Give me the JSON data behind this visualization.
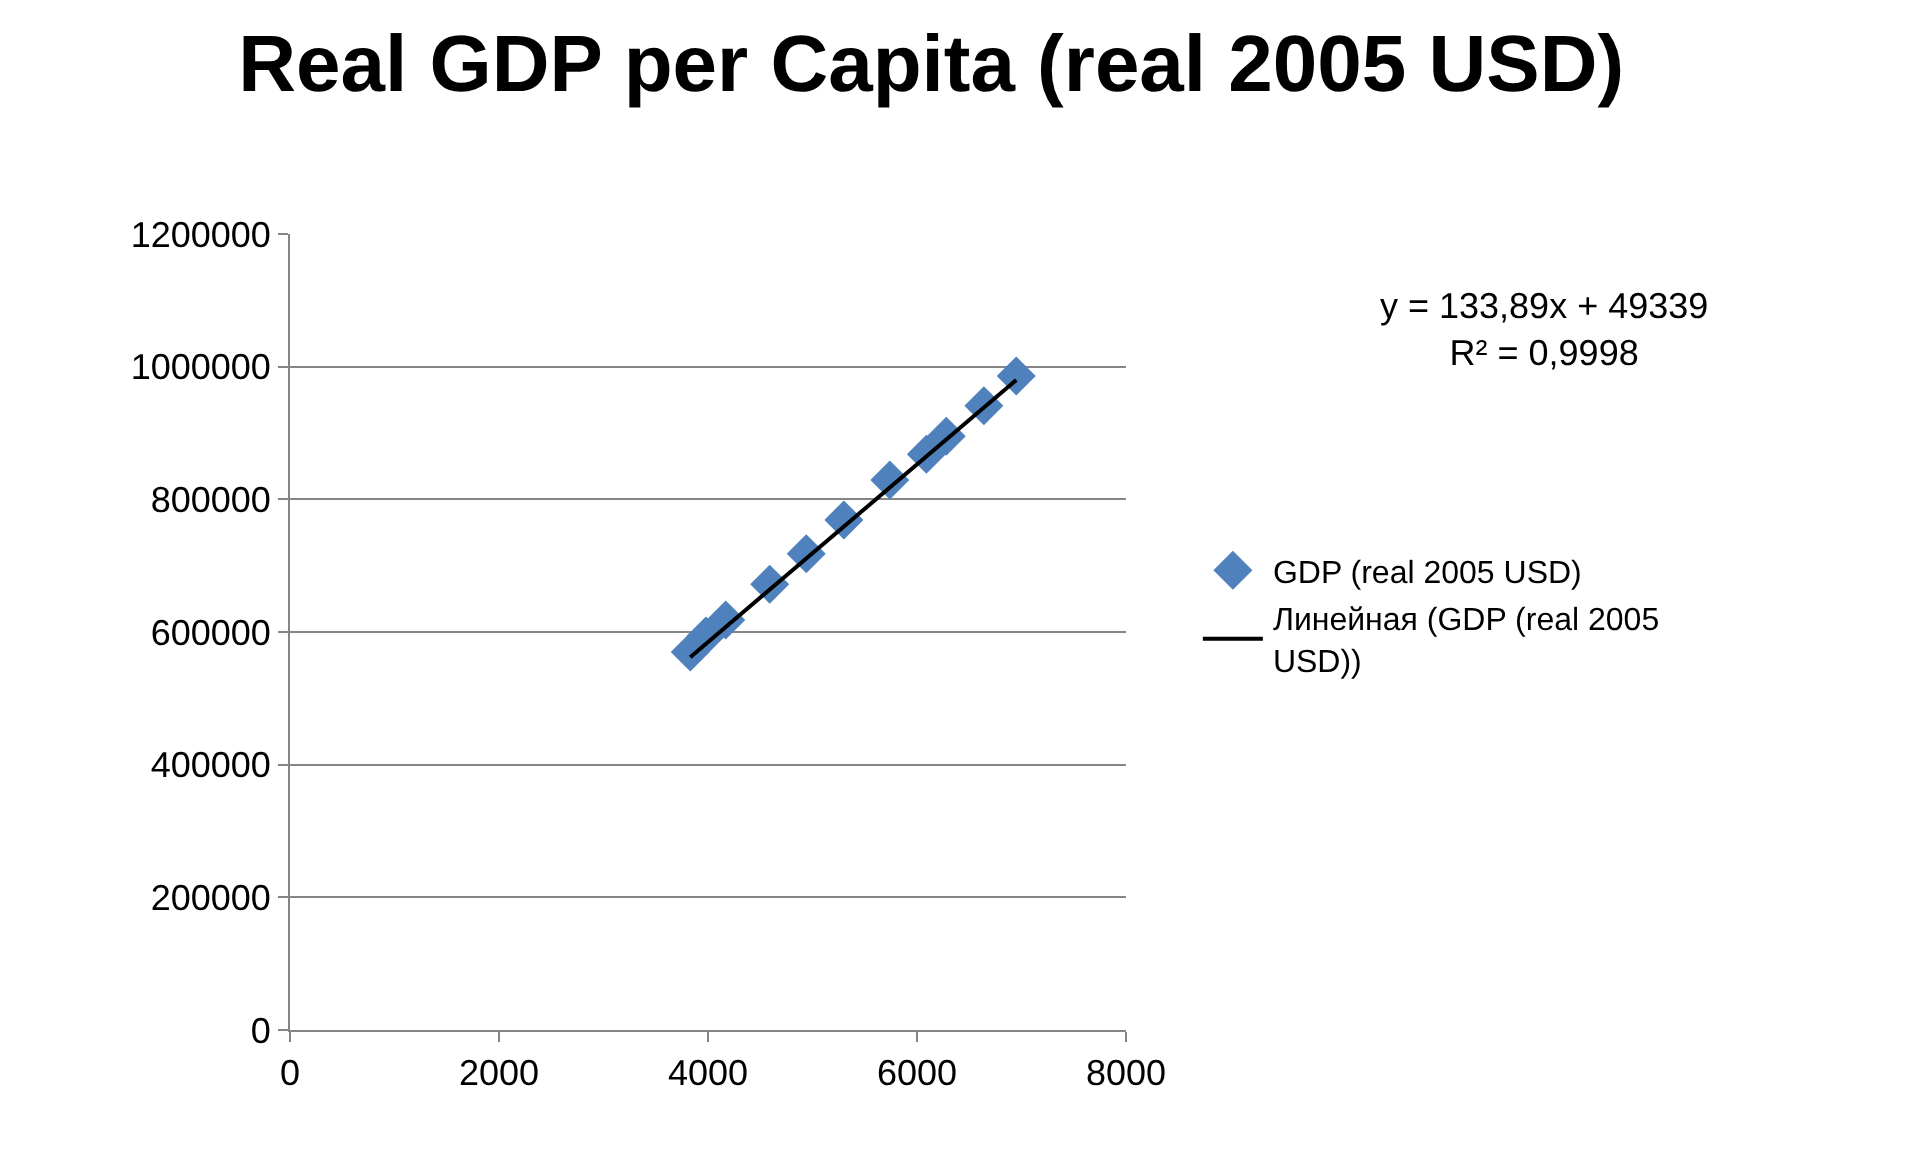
{
  "chart_data": {
    "type": "scatter",
    "title": "Real GDP per Capita (real 2005 USD)",
    "xlim": [
      0,
      8000
    ],
    "xticks": [
      0,
      2000,
      4000,
      6000,
      8000
    ],
    "ylim": [
      0,
      1200000
    ],
    "yticks": [
      0,
      200000,
      400000,
      600000,
      800000,
      1000000,
      1200000
    ],
    "grid": "y",
    "legend": "right",
    "annotations": [
      "y = 133,89x + 49339\nR² = 0,9998"
    ],
    "series": [
      {
        "name": "GDP (real 2005 USD)",
        "marker": "diamond",
        "color": "#4f81bd",
        "x": [
          3830,
          3980,
          4170,
          4590,
          4940,
          5300,
          5740,
          6090,
          6280,
          6640,
          6950
        ],
        "values": [
          570000,
          594000,
          618000,
          672000,
          718000,
          769000,
          829000,
          868000,
          895000,
          941000,
          986000
        ]
      },
      {
        "name": "Линейная (GDP (real 2005 USD))",
        "type": "line",
        "marker": "none",
        "color": "#000000",
        "line_style": "solid",
        "x": [
          3830,
          6950
        ],
        "values": [
          562000,
          980000
        ]
      }
    ]
  }
}
